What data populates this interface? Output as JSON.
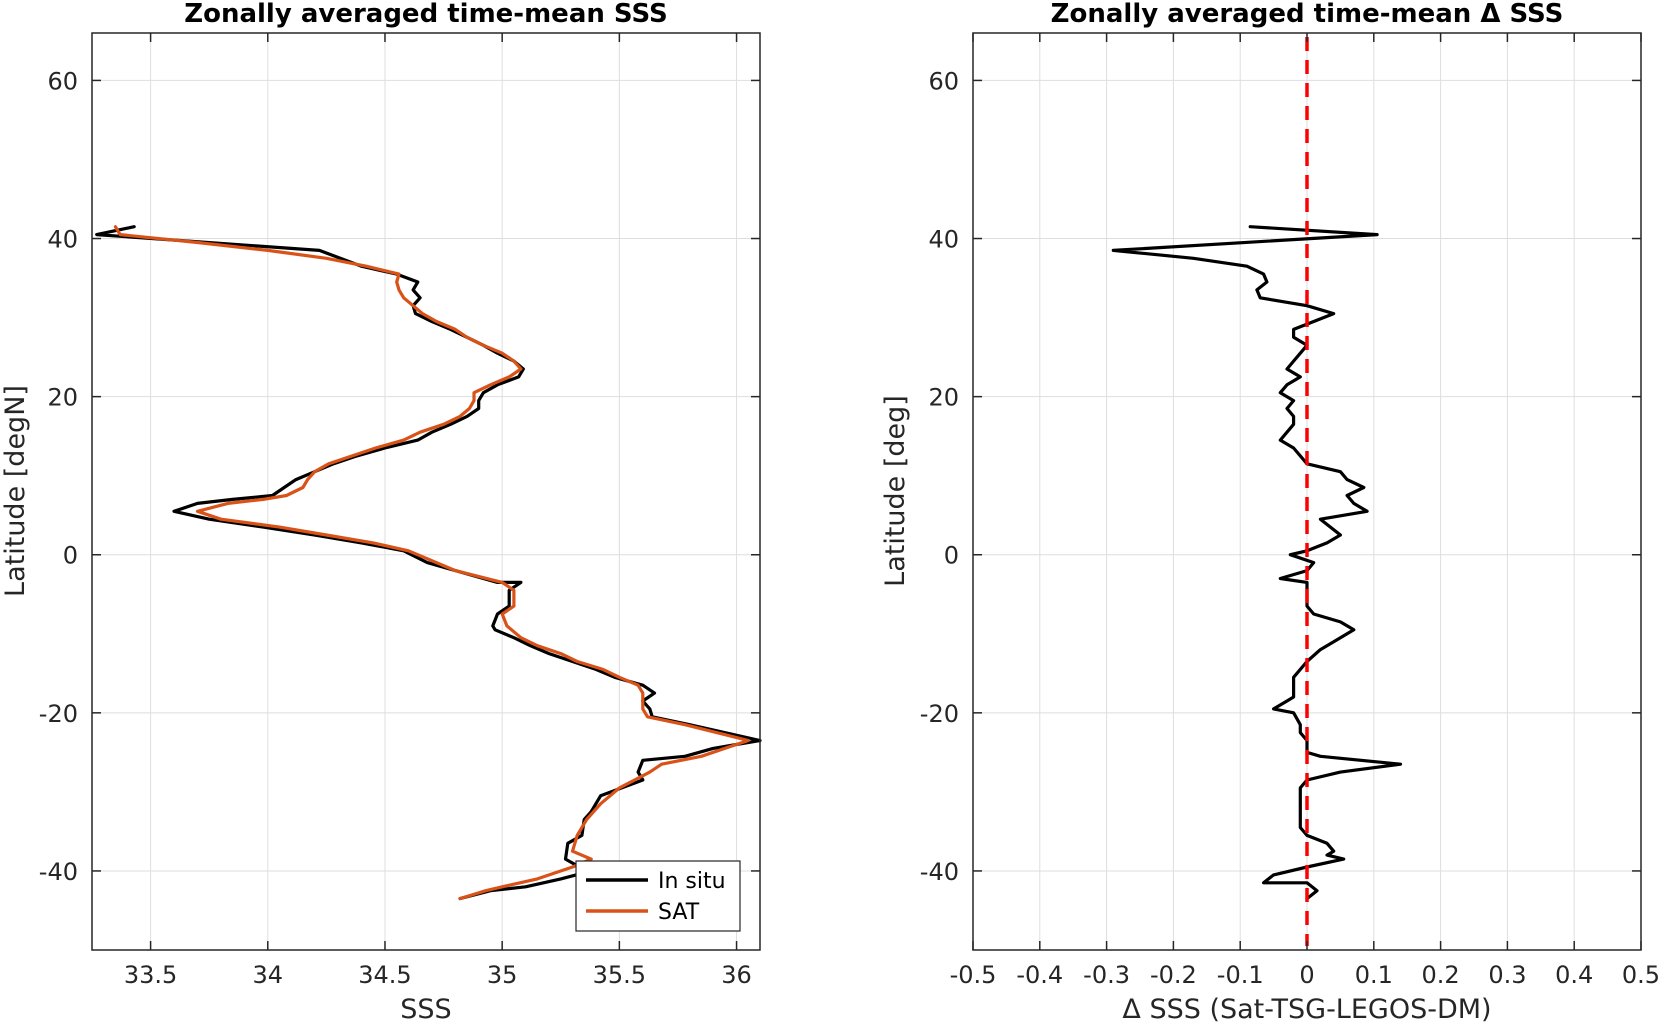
{
  "chart_data": [
    {
      "type": "line",
      "title": "Zonally averaged time-mean SSS",
      "xlabel": "SSS",
      "ylabel": "Latitude [degN]",
      "xlim": [
        33.25,
        36.1
      ],
      "ylim": [
        -50,
        66
      ],
      "xticks": [
        33.5,
        34,
        34.5,
        35,
        35.5,
        36
      ],
      "xtick_labels": [
        "33.5",
        "34",
        "34.5",
        "35",
        "35.5",
        "36"
      ],
      "yticks": [
        -40,
        -20,
        0,
        20,
        40,
        60
      ],
      "ytick_labels": [
        "-40",
        "-20",
        "0",
        "20",
        "40",
        "60"
      ],
      "grid": true,
      "legend": "bottom-right",
      "series": [
        {
          "name": "In situ",
          "color": "#000000",
          "points": [
            [
              33.43,
              41.5
            ],
            [
              33.27,
              40.5
            ],
            [
              34.22,
              38.5
            ],
            [
              34.4,
              36.5
            ],
            [
              34.55,
              35.5
            ],
            [
              34.64,
              34.5
            ],
            [
              34.62,
              33.5
            ],
            [
              34.65,
              32.5
            ],
            [
              34.62,
              31.5
            ],
            [
              34.63,
              30.5
            ],
            [
              34.7,
              29.5
            ],
            [
              34.78,
              28.5
            ],
            [
              34.85,
              27.5
            ],
            [
              34.92,
              26.5
            ],
            [
              34.98,
              25.5
            ],
            [
              35.05,
              24.5
            ],
            [
              35.09,
              23.5
            ],
            [
              35.07,
              22.5
            ],
            [
              34.98,
              21.5
            ],
            [
              34.92,
              20.5
            ],
            [
              34.9,
              19.5
            ],
            [
              34.9,
              18.5
            ],
            [
              34.85,
              17.5
            ],
            [
              34.78,
              16.5
            ],
            [
              34.7,
              15.5
            ],
            [
              34.64,
              14.5
            ],
            [
              34.5,
              13.5
            ],
            [
              34.38,
              12.5
            ],
            [
              34.28,
              11.5
            ],
            [
              34.2,
              10.5
            ],
            [
              34.12,
              9.5
            ],
            [
              34.07,
              8.5
            ],
            [
              34.02,
              7.5
            ],
            [
              33.85,
              7.0
            ],
            [
              33.7,
              6.5
            ],
            [
              33.6,
              5.5
            ],
            [
              33.75,
              4.5
            ],
            [
              33.98,
              3.5
            ],
            [
              34.2,
              2.5
            ],
            [
              34.4,
              1.5
            ],
            [
              34.58,
              0.5
            ],
            [
              34.68,
              -1.0
            ],
            [
              34.8,
              -2.0
            ],
            [
              34.98,
              -3.5
            ],
            [
              35.08,
              -3.5
            ],
            [
              35.03,
              -4.5
            ],
            [
              35.03,
              -6.5
            ],
            [
              34.98,
              -7.5
            ],
            [
              34.96,
              -9.0
            ],
            [
              34.97,
              -9.5
            ],
            [
              35.05,
              -10.5
            ],
            [
              35.12,
              -11.5
            ],
            [
              35.2,
              -12.5
            ],
            [
              35.3,
              -13.5
            ],
            [
              35.4,
              -14.5
            ],
            [
              35.48,
              -15.5
            ],
            [
              35.6,
              -16.5
            ],
            [
              35.65,
              -17.5
            ],
            [
              35.6,
              -18.5
            ],
            [
              35.63,
              -19.5
            ],
            [
              35.64,
              -20.5
            ],
            [
              35.8,
              -21.5
            ],
            [
              36.1,
              -23.5
            ],
            [
              35.9,
              -24.5
            ],
            [
              35.78,
              -25.5
            ],
            [
              35.6,
              -26.0
            ],
            [
              35.58,
              -27.5
            ],
            [
              35.6,
              -28.5
            ],
            [
              35.42,
              -30.5
            ],
            [
              35.38,
              -32.5
            ],
            [
              35.35,
              -33.5
            ],
            [
              35.34,
              -35.5
            ],
            [
              35.28,
              -36.5
            ],
            [
              35.27,
              -38.5
            ],
            [
              35.33,
              -39.5
            ],
            [
              35.38,
              -40.0
            ],
            [
              35.25,
              -41.0
            ],
            [
              35.1,
              -42.0
            ],
            [
              34.95,
              -42.5
            ],
            [
              34.82,
              -43.5
            ]
          ]
        },
        {
          "name": "SAT",
          "color": "#d95319",
          "points": [
            [
              33.35,
              41.5
            ],
            [
              33.37,
              40.5
            ],
            [
              33.7,
              39.5
            ],
            [
              34.0,
              38.5
            ],
            [
              34.25,
              37.5
            ],
            [
              34.42,
              36.5
            ],
            [
              34.56,
              35.5
            ],
            [
              34.55,
              34.5
            ],
            [
              34.56,
              33.5
            ],
            [
              34.58,
              32.5
            ],
            [
              34.62,
              31.5
            ],
            [
              34.66,
              30.5
            ],
            [
              34.72,
              29.5
            ],
            [
              34.8,
              28.5
            ],
            [
              34.85,
              27.5
            ],
            [
              34.92,
              26.5
            ],
            [
              35.0,
              25.5
            ],
            [
              35.05,
              24.5
            ],
            [
              35.08,
              23.5
            ],
            [
              35.03,
              22.5
            ],
            [
              34.95,
              21.5
            ],
            [
              34.88,
              20.5
            ],
            [
              34.88,
              19.5
            ],
            [
              34.86,
              18.5
            ],
            [
              34.82,
              17.5
            ],
            [
              34.75,
              16.5
            ],
            [
              34.65,
              15.5
            ],
            [
              34.58,
              14.5
            ],
            [
              34.46,
              13.5
            ],
            [
              34.36,
              12.5
            ],
            [
              34.26,
              11.5
            ],
            [
              34.2,
              10.5
            ],
            [
              34.17,
              9.5
            ],
            [
              34.15,
              8.5
            ],
            [
              34.08,
              7.5
            ],
            [
              33.98,
              7.0
            ],
            [
              33.83,
              6.5
            ],
            [
              33.7,
              5.5
            ],
            [
              33.8,
              4.5
            ],
            [
              34.05,
              3.5
            ],
            [
              34.25,
              2.5
            ],
            [
              34.45,
              1.5
            ],
            [
              34.6,
              0.5
            ],
            [
              34.68,
              -0.5
            ],
            [
              34.8,
              -2.0
            ],
            [
              35.0,
              -3.5
            ],
            [
              35.05,
              -4.5
            ],
            [
              35.05,
              -6.5
            ],
            [
              35.0,
              -7.5
            ],
            [
              35.02,
              -9.0
            ],
            [
              35.08,
              -10.5
            ],
            [
              35.15,
              -11.5
            ],
            [
              35.25,
              -12.5
            ],
            [
              35.32,
              -13.5
            ],
            [
              35.43,
              -14.5
            ],
            [
              35.5,
              -15.5
            ],
            [
              35.58,
              -16.5
            ],
            [
              35.6,
              -17.5
            ],
            [
              35.6,
              -19.5
            ],
            [
              35.62,
              -20.5
            ],
            [
              35.78,
              -21.5
            ],
            [
              36.05,
              -23.5
            ],
            [
              35.95,
              -24.5
            ],
            [
              35.85,
              -25.5
            ],
            [
              35.68,
              -26.5
            ],
            [
              35.63,
              -27.5
            ],
            [
              35.5,
              -29.5
            ],
            [
              35.42,
              -31.5
            ],
            [
              35.36,
              -33.5
            ],
            [
              35.32,
              -35.5
            ],
            [
              35.3,
              -37.5
            ],
            [
              35.38,
              -38.5
            ],
            [
              35.3,
              -39.5
            ],
            [
              35.15,
              -41.0
            ],
            [
              35.0,
              -42.0
            ],
            [
              34.93,
              -42.5
            ],
            [
              34.82,
              -43.5
            ]
          ]
        }
      ]
    },
    {
      "type": "line",
      "title": "Zonally averaged time-mean Δ SSS",
      "xlabel": "Δ SSS (Sat-TSG-LEGOS-DM)",
      "ylabel": "Latitude [deg]",
      "xlim": [
        -0.5,
        0.5
      ],
      "ylim": [
        -50,
        66
      ],
      "xticks": [
        -0.5,
        -0.4,
        -0.3,
        -0.2,
        -0.1,
        0,
        0.1,
        0.2,
        0.3,
        0.4,
        0.5
      ],
      "xtick_labels": [
        "-0.5",
        "-0.4",
        "-0.3",
        "-0.2",
        "-0.1",
        "0",
        "0.1",
        "0.2",
        "0.3",
        "0.4",
        "0.5"
      ],
      "yticks": [
        -40,
        -20,
        0,
        20,
        40,
        60
      ],
      "ytick_labels": [
        "-40",
        "-20",
        "0",
        "20",
        "40",
        "60"
      ],
      "grid": true,
      "reference_line": {
        "x": 0,
        "color": "#ff0000",
        "style": "dashed"
      },
      "series": [
        {
          "color": "#000000",
          "points": [
            [
              -0.085,
              41.5
            ],
            [
              0.105,
              40.5
            ],
            [
              -0.29,
              38.5
            ],
            [
              -0.17,
              37.5
            ],
            [
              -0.09,
              36.5
            ],
            [
              -0.065,
              35.5
            ],
            [
              -0.06,
              34.5
            ],
            [
              -0.075,
              33.5
            ],
            [
              -0.07,
              32.5
            ],
            [
              0.0,
              31.5
            ],
            [
              0.04,
              30.5
            ],
            [
              0.01,
              29.5
            ],
            [
              -0.02,
              28.5
            ],
            [
              -0.02,
              27.5
            ],
            [
              0.0,
              26.5
            ],
            [
              -0.01,
              25.5
            ],
            [
              -0.02,
              24.5
            ],
            [
              -0.03,
              23.5
            ],
            [
              -0.01,
              22.5
            ],
            [
              -0.03,
              21.5
            ],
            [
              -0.04,
              20.5
            ],
            [
              -0.02,
              19.5
            ],
            [
              -0.03,
              18.5
            ],
            [
              -0.02,
              17.5
            ],
            [
              -0.02,
              16.5
            ],
            [
              -0.04,
              14.5
            ],
            [
              -0.02,
              13.5
            ],
            [
              -0.01,
              12.5
            ],
            [
              0.0,
              11.5
            ],
            [
              0.05,
              10.5
            ],
            [
              0.06,
              9.5
            ],
            [
              0.085,
              8.5
            ],
            [
              0.06,
              7.5
            ],
            [
              0.07,
              6.5
            ],
            [
              0.09,
              5.5
            ],
            [
              0.02,
              4.5
            ],
            [
              0.05,
              2.5
            ],
            [
              0.03,
              1.5
            ],
            [
              0.0,
              0.5
            ],
            [
              -0.025,
              0.0
            ],
            [
              0.01,
              -1.0
            ],
            [
              0.0,
              -2.0
            ],
            [
              -0.04,
              -3.0
            ],
            [
              0.0,
              -3.5
            ],
            [
              0.0,
              -6.5
            ],
            [
              0.01,
              -7.5
            ],
            [
              0.05,
              -8.5
            ],
            [
              0.07,
              -9.5
            ],
            [
              0.04,
              -11.0
            ],
            [
              0.02,
              -12.0
            ],
            [
              0.0,
              -13.5
            ],
            [
              -0.02,
              -15.5
            ],
            [
              -0.02,
              -17.0
            ],
            [
              -0.02,
              -18.0
            ],
            [
              -0.03,
              -18.5
            ],
            [
              -0.05,
              -19.5
            ],
            [
              -0.02,
              -20.0
            ],
            [
              -0.01,
              -21.5
            ],
            [
              -0.01,
              -22.5
            ],
            [
              0.0,
              -23.5
            ],
            [
              0.0,
              -25.0
            ],
            [
              0.02,
              -25.5
            ],
            [
              0.14,
              -26.5
            ],
            [
              0.05,
              -27.5
            ],
            [
              0.0,
              -28.5
            ],
            [
              -0.01,
              -29.5
            ],
            [
              -0.01,
              -31.5
            ],
            [
              -0.01,
              -33.5
            ],
            [
              -0.01,
              -34.5
            ],
            [
              0.0,
              -35.5
            ],
            [
              0.03,
              -36.5
            ],
            [
              0.04,
              -37.5
            ],
            [
              0.03,
              -38.0
            ],
            [
              0.055,
              -38.5
            ],
            [
              0.0,
              -39.5
            ],
            [
              -0.05,
              -40.5
            ],
            [
              -0.065,
              -41.5
            ],
            [
              0.0,
              -41.5
            ],
            [
              0.015,
              -42.5
            ],
            [
              0.0,
              -43.5
            ]
          ]
        }
      ]
    }
  ]
}
